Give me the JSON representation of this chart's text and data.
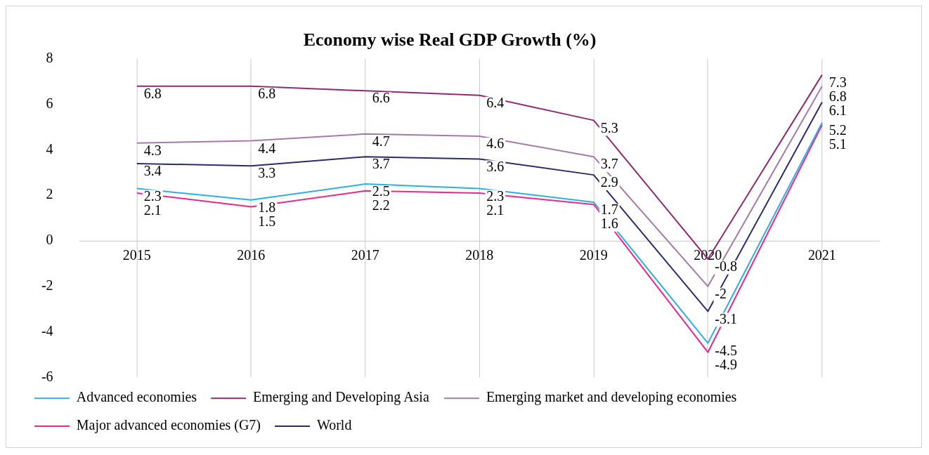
{
  "chart_data": {
    "type": "line",
    "title": "Economy wise Real GDP Growth (%)",
    "categories": [
      "2015",
      "2016",
      "2017",
      "2018",
      "2019",
      "2020",
      "2021"
    ],
    "series": [
      {
        "name": "Advanced economies",
        "color": "#2eaee3",
        "values": [
          2.3,
          1.8,
          2.5,
          2.3,
          1.7,
          -4.5,
          5.2
        ]
      },
      {
        "name": "Emerging and Developing Asia",
        "color": "#8e2a73",
        "values": [
          6.8,
          6.8,
          6.6,
          6.4,
          5.3,
          -0.8,
          7.3
        ]
      },
      {
        "name": "Emerging market and developing economies",
        "color": "#a57aa6",
        "values": [
          4.3,
          4.4,
          4.7,
          4.6,
          3.7,
          -2,
          6.8
        ]
      },
      {
        "name": "Major advanced economies (G7)",
        "color": "#e8288c",
        "values": [
          2.1,
          1.5,
          2.2,
          2.1,
          1.6,
          -4.9,
          5.1
        ]
      },
      {
        "name": "World",
        "color": "#2e2a6c",
        "values": [
          3.4,
          3.3,
          3.7,
          3.6,
          2.9,
          -3.1,
          6.1
        ]
      }
    ],
    "ylim": [
      -6,
      8
    ],
    "yticks": [
      -6,
      -4,
      -2,
      0,
      2,
      4,
      6,
      8
    ],
    "grid": "x",
    "legend": "bottom",
    "data_labels": true,
    "marker": "none"
  }
}
